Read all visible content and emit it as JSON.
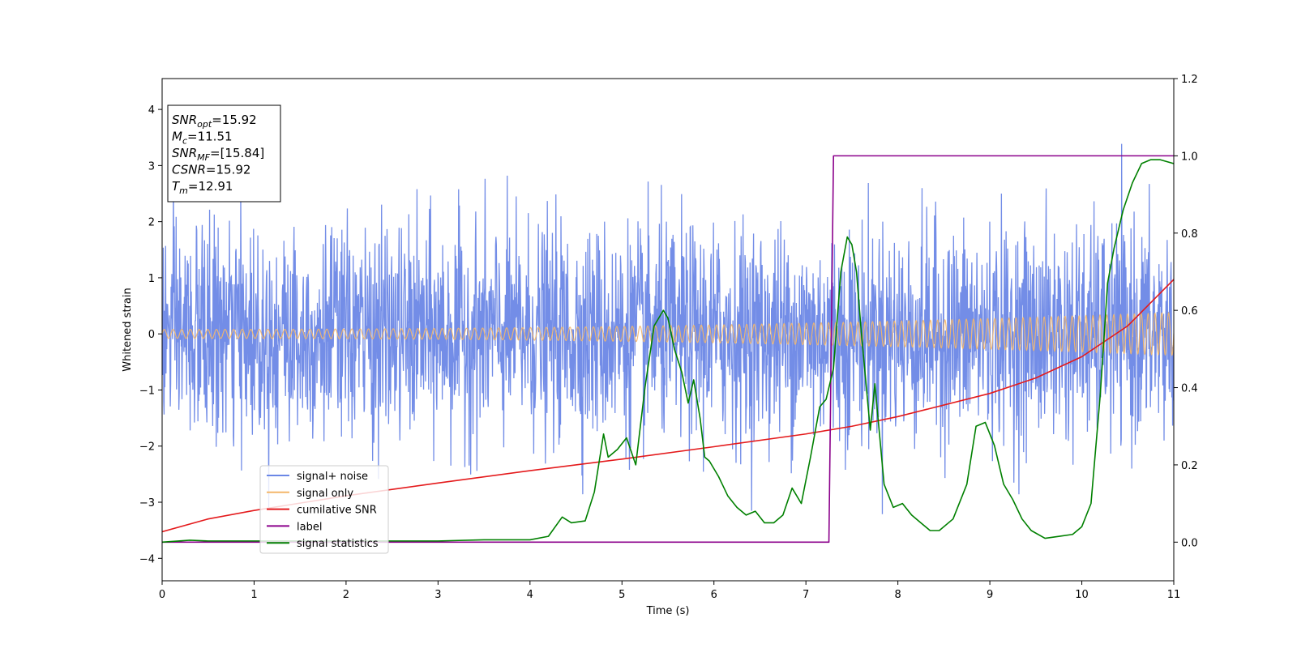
{
  "chart_data": {
    "type": "line",
    "title": "",
    "xlabel": "Time (s)",
    "ylabel": "Whitened strain",
    "xlim": [
      0,
      11
    ],
    "ylim": [
      -4.4,
      4.55
    ],
    "y2lim": [
      -0.1,
      1.2
    ],
    "grid": false,
    "legend_position": "lower-left",
    "xticks": [
      "0",
      "1",
      "2",
      "3",
      "4",
      "5",
      "6",
      "7",
      "8",
      "9",
      "10",
      "11"
    ],
    "yticks": [
      "−4",
      "−3",
      "−2",
      "−1",
      "0",
      "1",
      "2",
      "3",
      "4"
    ],
    "y2ticks": [
      "0.0",
      "0.2",
      "0.4",
      "0.6",
      "0.8",
      "1.0",
      "1.2"
    ],
    "info_box": [
      {
        "base": "SNR",
        "sub": "opt",
        "rest": "=15.92"
      },
      {
        "base": "M",
        "sub": "c",
        "rest": "=11.51"
      },
      {
        "base": "SNR",
        "sub": "MF",
        "rest": "=[15.84]"
      },
      {
        "base": "CSNR",
        "sub": "",
        "rest": "=15.92"
      },
      {
        "base": "T",
        "sub": "m",
        "rest": "=12.91"
      }
    ],
    "series": [
      {
        "name": "signal+ noise",
        "color": "#6b87e6",
        "axis": "left",
        "style": "noise",
        "std": 0.95,
        "max_abs": 4.1
      },
      {
        "name": "signal only",
        "color": "#f4b76a",
        "axis": "left",
        "style": "chirp",
        "amp_start": 0.08,
        "amp_end": 0.38,
        "freq_start": 10.5,
        "freq_end": 13.5
      },
      {
        "name": "cumilative SNR",
        "color": "#e41a1c",
        "axis": "right",
        "x": [
          0,
          0.5,
          1,
          2,
          3,
          4,
          5,
          6,
          7,
          7.5,
          8,
          9,
          9.5,
          10,
          10.5,
          11
        ],
        "values": [
          0.027,
          0.06,
          0.082,
          0.12,
          0.153,
          0.185,
          0.215,
          0.247,
          0.28,
          0.3,
          0.325,
          0.385,
          0.425,
          0.48,
          0.56,
          0.68
        ]
      },
      {
        "name": "label",
        "color": "#8b008b",
        "axis": "right",
        "x": [
          0,
          7.25,
          7.3,
          11
        ],
        "values": [
          0.0,
          0.0,
          1.0,
          1.0
        ]
      },
      {
        "name": "signal statistics",
        "color": "#008000",
        "axis": "right",
        "x": [
          0,
          0.3,
          0.5,
          1,
          2,
          3,
          3.5,
          4,
          4.2,
          4.35,
          4.45,
          4.6,
          4.7,
          4.8,
          4.85,
          4.95,
          5.05,
          5.15,
          5.25,
          5.35,
          5.45,
          5.5,
          5.57,
          5.65,
          5.72,
          5.78,
          5.85,
          5.9,
          5.95,
          6.05,
          6.15,
          6.25,
          6.35,
          6.45,
          6.55,
          6.65,
          6.75,
          6.85,
          6.95,
          7.05,
          7.15,
          7.22,
          7.3,
          7.38,
          7.45,
          7.5,
          7.55,
          7.6,
          7.7,
          7.75,
          7.85,
          7.95,
          8.05,
          8.15,
          8.25,
          8.35,
          8.45,
          8.6,
          8.75,
          8.85,
          8.95,
          9.05,
          9.15,
          9.25,
          9.35,
          9.45,
          9.6,
          9.75,
          9.9,
          10.0,
          10.1,
          10.2,
          10.28,
          10.35,
          10.45,
          10.55,
          10.65,
          10.75,
          10.85,
          11
        ],
        "values": [
          0.0,
          0.005,
          0.003,
          0.003,
          0.003,
          0.003,
          0.006,
          0.006,
          0.015,
          0.065,
          0.05,
          0.055,
          0.13,
          0.28,
          0.22,
          0.24,
          0.27,
          0.2,
          0.4,
          0.56,
          0.6,
          0.58,
          0.5,
          0.44,
          0.36,
          0.42,
          0.32,
          0.22,
          0.21,
          0.17,
          0.12,
          0.09,
          0.07,
          0.08,
          0.05,
          0.05,
          0.07,
          0.14,
          0.1,
          0.22,
          0.35,
          0.37,
          0.45,
          0.7,
          0.79,
          0.77,
          0.7,
          0.55,
          0.29,
          0.41,
          0.15,
          0.09,
          0.1,
          0.07,
          0.05,
          0.03,
          0.03,
          0.06,
          0.15,
          0.3,
          0.31,
          0.25,
          0.15,
          0.11,
          0.06,
          0.03,
          0.01,
          0.015,
          0.02,
          0.04,
          0.1,
          0.38,
          0.67,
          0.76,
          0.86,
          0.93,
          0.98,
          0.99,
          0.99,
          0.98
        ]
      }
    ]
  }
}
